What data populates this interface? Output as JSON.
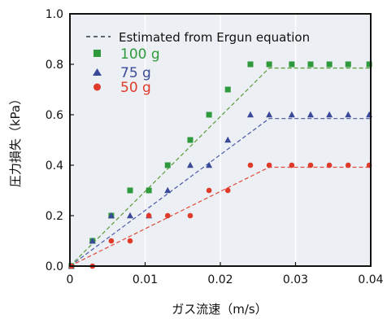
{
  "chart_data": {
    "type": "scatter",
    "title": "",
    "xlabel": "ガス流速（m/s）",
    "ylabel": "圧力損失（kPa）",
    "xlim": [
      0,
      0.04
    ],
    "ylim": [
      0,
      1.0
    ],
    "x_ticks": [
      "0",
      "0.01",
      "0.02",
      "0.03",
      "0.04"
    ],
    "y_ticks": [
      "0.0",
      "0.2",
      "0.4",
      "0.6",
      "0.8",
      "1.0"
    ],
    "grid": "vertical white lines at x ticks",
    "legend": {
      "placement": "top-left",
      "fit_label": "Estimated from Ergun equation",
      "fit_color": "#303848"
    },
    "series": [
      {
        "name": "100 g",
        "marker": "square",
        "color": "#2e9a3c",
        "fit_color": "#5a9a3a",
        "points": [
          [
            0.0002,
            0.0
          ],
          [
            0.003,
            0.1
          ],
          [
            0.0055,
            0.2
          ],
          [
            0.008,
            0.3
          ],
          [
            0.0105,
            0.3
          ],
          [
            0.013,
            0.4
          ],
          [
            0.016,
            0.5
          ],
          [
            0.0185,
            0.6
          ],
          [
            0.021,
            0.7
          ],
          [
            0.024,
            0.8
          ],
          [
            0.0265,
            0.8
          ],
          [
            0.0295,
            0.8
          ],
          [
            0.032,
            0.8
          ],
          [
            0.0345,
            0.8
          ],
          [
            0.037,
            0.8
          ],
          [
            0.0398,
            0.8
          ]
        ],
        "fit": [
          [
            0.0,
            0.0
          ],
          [
            0.0265,
            0.785
          ],
          [
            0.04,
            0.785
          ]
        ]
      },
      {
        "name": "75 g",
        "marker": "triangle",
        "color": "#3a4a98",
        "fit_color": "#4a5aa8",
        "points": [
          [
            0.0002,
            0.0
          ],
          [
            0.003,
            0.1
          ],
          [
            0.0055,
            0.2
          ],
          [
            0.008,
            0.2
          ],
          [
            0.0105,
            0.2
          ],
          [
            0.013,
            0.3
          ],
          [
            0.016,
            0.4
          ],
          [
            0.0185,
            0.4
          ],
          [
            0.021,
            0.5
          ],
          [
            0.024,
            0.6
          ],
          [
            0.0265,
            0.6
          ],
          [
            0.0295,
            0.6
          ],
          [
            0.032,
            0.6
          ],
          [
            0.0345,
            0.6
          ],
          [
            0.037,
            0.6
          ],
          [
            0.0398,
            0.6
          ]
        ],
        "fit": [
          [
            0.0,
            0.0
          ],
          [
            0.0265,
            0.585
          ],
          [
            0.04,
            0.585
          ]
        ]
      },
      {
        "name": "50 g",
        "marker": "circle",
        "color": "#e03a2a",
        "fit_color": "#e04a3a",
        "points": [
          [
            0.0002,
            0.0
          ],
          [
            0.003,
            0.0
          ],
          [
            0.0055,
            0.1
          ],
          [
            0.008,
            0.1
          ],
          [
            0.0105,
            0.2
          ],
          [
            0.013,
            0.2
          ],
          [
            0.016,
            0.2
          ],
          [
            0.0185,
            0.3
          ],
          [
            0.021,
            0.3
          ],
          [
            0.024,
            0.4
          ],
          [
            0.0265,
            0.4
          ],
          [
            0.0295,
            0.4
          ],
          [
            0.032,
            0.4
          ],
          [
            0.0345,
            0.4
          ],
          [
            0.037,
            0.4
          ],
          [
            0.0398,
            0.4
          ]
        ],
        "fit": [
          [
            0.0,
            0.0
          ],
          [
            0.0265,
            0.392
          ],
          [
            0.04,
            0.392
          ]
        ]
      }
    ],
    "colors": {
      "plot_background": "#eceff3",
      "frame": "#111111",
      "gridline": "#ffffff",
      "text": "#111111"
    }
  }
}
